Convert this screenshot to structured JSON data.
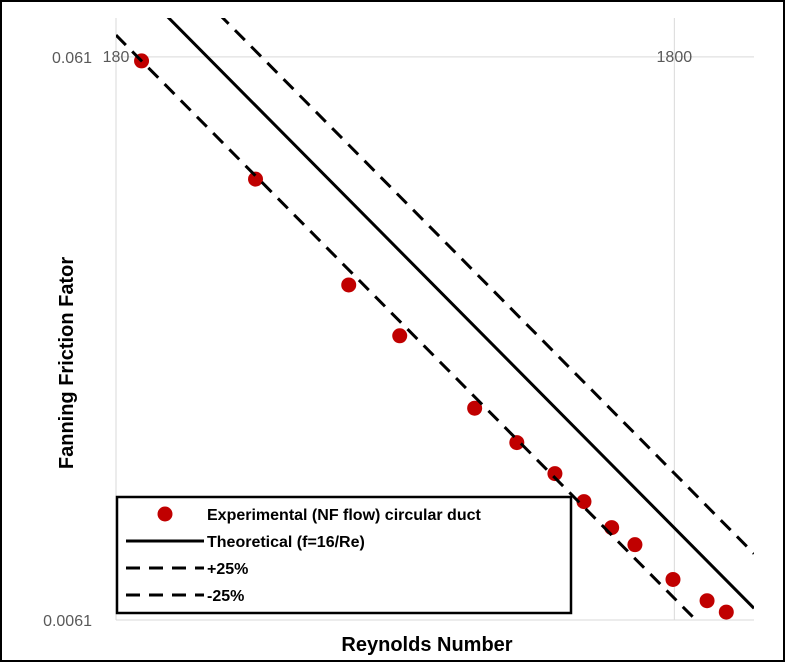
{
  "chart_data": {
    "type": "scatter",
    "title": "",
    "xlabel": "Reynolds Number",
    "ylabel": "Fanning Friction Fator",
    "x_scale": "log",
    "y_scale": "log",
    "xlim": [
      180,
      2500
    ],
    "ylim": [
      0.0061,
      0.0715
    ],
    "x_ticks": [
      "180",
      "1800"
    ],
    "y_ticks": [
      "0.061",
      "0.0061"
    ],
    "grid": true,
    "legend_position": "bottom-left",
    "series": [
      {
        "name": "Experimental (NF flow) circular duct",
        "kind": "scatter",
        "color": "#c00000",
        "x": [
          200,
          320,
          470,
          580,
          790,
          940,
          1100,
          1240,
          1390,
          1530,
          1790,
          2060,
          2230
        ],
        "y": [
          0.06,
          0.037,
          0.024,
          0.0195,
          0.0145,
          0.0126,
          0.0111,
          0.0099,
          0.0089,
          0.0083,
          0.0072,
          0.0066,
          0.0063
        ]
      },
      {
        "name": "Theoretical (f=16/Re)",
        "kind": "line",
        "dash": "solid",
        "color": "#000000",
        "x": [
          220,
          2500
        ],
        "y": [
          0.07273,
          0.0064
        ]
      },
      {
        "name": "+25%",
        "kind": "line",
        "dash": "dashed",
        "color": "#000000",
        "x": [
          275,
          2500
        ],
        "y": [
          0.07273,
          0.008
        ]
      },
      {
        "name": "-25%",
        "kind": "line",
        "dash": "dashed",
        "color": "#000000",
        "x": [
          180,
          2500
        ],
        "y": [
          0.06667,
          0.0048
        ]
      }
    ]
  }
}
